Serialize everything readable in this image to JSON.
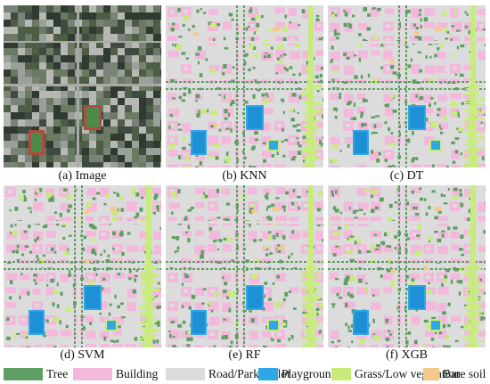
{
  "panels": [
    {
      "caption": "(a) Image",
      "kind": "satellite"
    },
    {
      "caption": "(b) KNN",
      "kind": "classified"
    },
    {
      "caption": "(c) DT",
      "kind": "classified"
    },
    {
      "caption": "(d) SVM",
      "kind": "classified"
    },
    {
      "caption": "(e) RF",
      "kind": "classified"
    },
    {
      "caption": "(f) XGB",
      "kind": "classified"
    }
  ],
  "legend": [
    {
      "label": "Tree",
      "color": "#5f9e62"
    },
    {
      "label": "Building",
      "color": "#f3b8dc"
    },
    {
      "label": "Road/Parking lot",
      "color": "#dcdcdc"
    },
    {
      "label": "Playground",
      "color": "#2ea7e6"
    },
    {
      "label": "Grass/Low vegetation",
      "color": "#c8ec7c"
    },
    {
      "label": "Bare soil",
      "color": "#f5c98b"
    }
  ]
}
